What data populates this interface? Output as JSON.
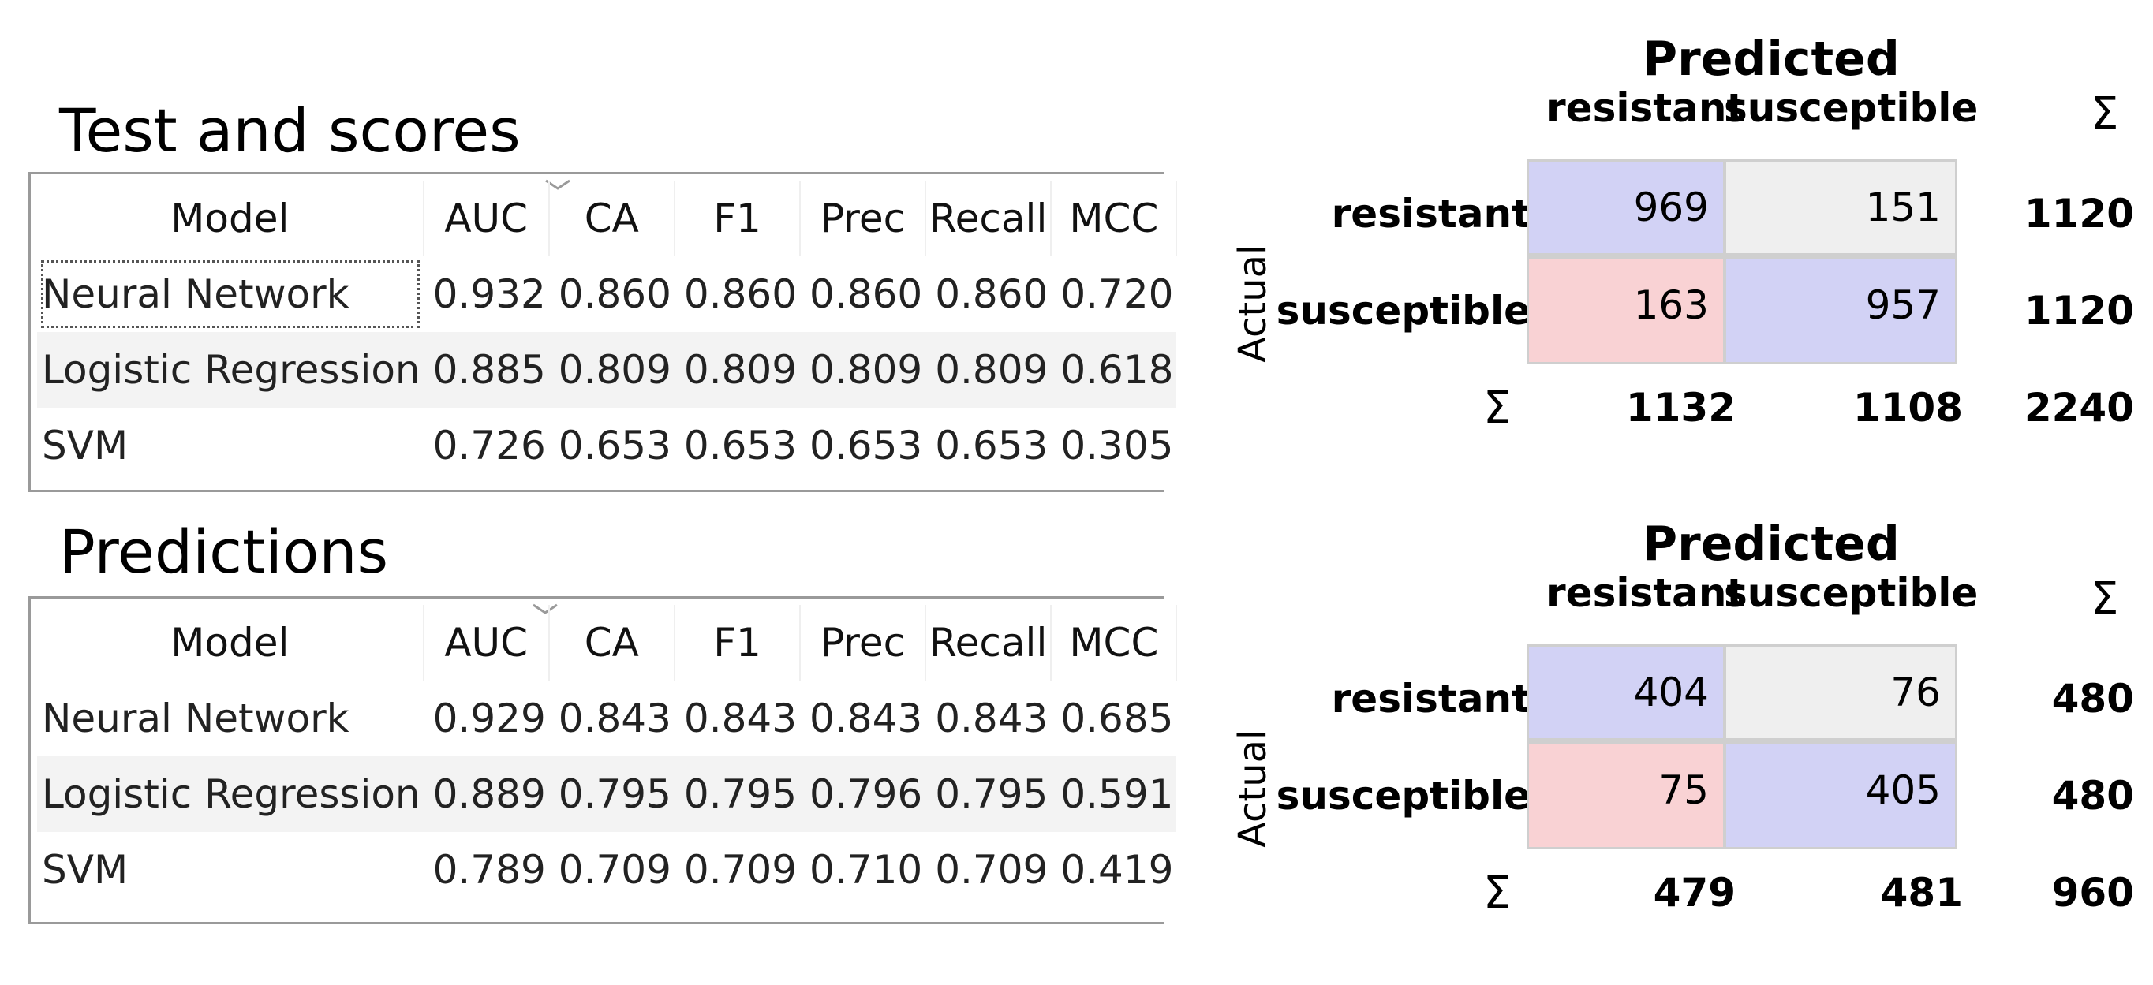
{
  "sections": [
    {
      "title": "Test and scores",
      "columns": [
        "Model",
        "AUC",
        "CA",
        "F1",
        "Prec",
        "Recall",
        "MCC"
      ],
      "rows": [
        [
          "Neural Network",
          "0.932",
          "0.860",
          "0.860",
          "0.860",
          "0.860",
          "0.720"
        ],
        [
          "Logistic Regression",
          "0.885",
          "0.809",
          "0.809",
          "0.809",
          "0.809",
          "0.618"
        ],
        [
          "SVM",
          "0.726",
          "0.653",
          "0.653",
          "0.653",
          "0.653",
          "0.305"
        ]
      ]
    },
    {
      "title": "Predictions",
      "columns": [
        "Model",
        "AUC",
        "CA",
        "F1",
        "Prec",
        "Recall",
        "MCC"
      ],
      "rows": [
        [
          "Neural Network",
          "0.929",
          "0.843",
          "0.843",
          "0.843",
          "0.843",
          "0.685"
        ],
        [
          "Logistic Regression",
          "0.889",
          "0.795",
          "0.795",
          "0.796",
          "0.795",
          "0.591"
        ],
        [
          "SVM",
          "0.789",
          "0.709",
          "0.709",
          "0.710",
          "0.709",
          "0.419"
        ]
      ]
    }
  ],
  "matrices": [
    {
      "predicted_label": "Predicted",
      "actual_label": "Actual",
      "sum_symbol": "Σ",
      "classes": [
        "resistant",
        "susceptible"
      ],
      "cells": [
        [
          "969",
          "151"
        ],
        [
          "163",
          "957"
        ]
      ],
      "row_totals": [
        "1120",
        "1120"
      ],
      "col_totals": [
        "1132",
        "1108"
      ],
      "grand_total": "2240"
    },
    {
      "predicted_label": "Predicted",
      "actual_label": "Actual",
      "sum_symbol": "Σ",
      "classes": [
        "resistant",
        "susceptible"
      ],
      "cells": [
        [
          "404",
          "76"
        ],
        [
          "75",
          "405"
        ]
      ],
      "row_totals": [
        "480",
        "480"
      ],
      "col_totals": [
        "479",
        "481"
      ],
      "grand_total": "960"
    }
  ],
  "colors": {
    "correct": "#d2d2f5",
    "wrong": "#f9d2d4",
    "neutral": "#efefef"
  }
}
